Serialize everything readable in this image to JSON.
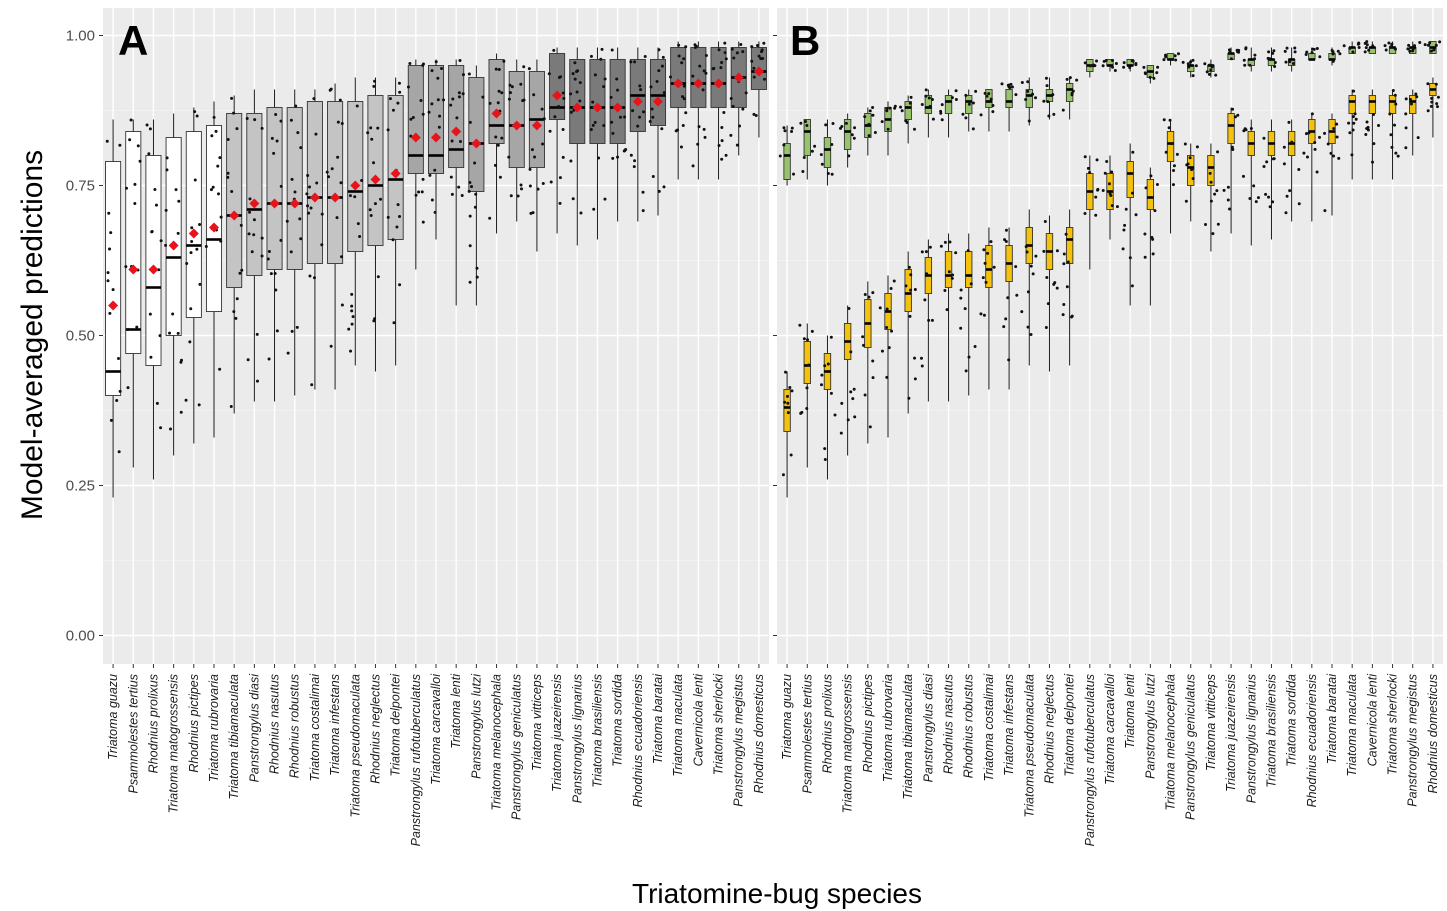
{
  "chart_data": {
    "type": "box",
    "xlabel": "Triatomine-bug species",
    "ylabel": "Model-averaged predictions",
    "ylim": [
      -0.04,
      1.05
    ],
    "yticks": [
      "0.00",
      "0.25",
      "0.50",
      "0.75",
      "1.00"
    ],
    "grid": true,
    "panels": [
      "A",
      "B"
    ],
    "categories": [
      "Triatoma guazu",
      "Psammolestes tertius",
      "Rhodnius prolixus",
      "Triatoma matogrossensis",
      "Rhodnius pictipes",
      "Triatoma rubrovaria",
      "Triatoma tibiamaculata",
      "Panstrongylus diasi",
      "Rhodnius nasutus",
      "Rhodnius robustus",
      "Triatoma costalimai",
      "Triatoma infestans",
      "Triatoma pseudomaculata",
      "Rhodnius neglectus",
      "Triatoma delpontei",
      "Panstrongylus rufotuberculatus",
      "Triatoma carcavalloi",
      "Triatoma lenti",
      "Panstrongylus lutzi",
      "Triatoma melanocephala",
      "Panstrongylus geniculatus",
      "Triatoma vitticeps",
      "Triatoma juazeirensis",
      "Panstrongylus lignarius",
      "Triatoma brasiliensis",
      "Triatoma sordida",
      "Rhodnius ecuadoriensis",
      "Triatoma baratai",
      "Triatoma maculata",
      "Cavernicola lenti",
      "Triatoma sherlocki",
      "Panstrongylus megistus",
      "Rhodnius domesticus"
    ],
    "panel_A": {
      "box_colors": [
        "#ffffff",
        "#ffffff",
        "#ffffff",
        "#ffffff",
        "#ffffff",
        "#ffffff",
        "#c4c4c4",
        "#c4c4c4",
        "#c4c4c4",
        "#c4c4c4",
        "#c4c4c4",
        "#c4c4c4",
        "#c4c4c4",
        "#c4c4c4",
        "#c4c4c4",
        "#a6a6a6",
        "#a6a6a6",
        "#a6a6a6",
        "#a6a6a6",
        "#a6a6a6",
        "#a6a6a6",
        "#a6a6a6",
        "#7a7a7a",
        "#7a7a7a",
        "#7a7a7a",
        "#7a7a7a",
        "#7a7a7a",
        "#7a7a7a",
        "#7a7a7a",
        "#7a7a7a",
        "#7a7a7a",
        "#7a7a7a",
        "#7a7a7a"
      ],
      "mean_color": "#e8141a",
      "min": [
        0.23,
        0.28,
        0.26,
        0.3,
        0.32,
        0.33,
        0.37,
        0.39,
        0.39,
        0.4,
        0.41,
        0.41,
        0.45,
        0.44,
        0.45,
        0.61,
        0.66,
        0.55,
        0.55,
        0.67,
        0.69,
        0.64,
        0.67,
        0.65,
        0.66,
        0.69,
        0.69,
        0.7,
        0.76,
        0.76,
        0.76,
        0.8,
        0.83
      ],
      "q1": [
        0.4,
        0.47,
        0.45,
        0.5,
        0.53,
        0.54,
        0.58,
        0.6,
        0.61,
        0.61,
        0.62,
        0.62,
        0.64,
        0.65,
        0.66,
        0.77,
        0.77,
        0.78,
        0.74,
        0.82,
        0.78,
        0.78,
        0.86,
        0.82,
        0.82,
        0.82,
        0.84,
        0.85,
        0.88,
        0.88,
        0.88,
        0.88,
        0.91
      ],
      "median": [
        0.44,
        0.51,
        0.58,
        0.63,
        0.65,
        0.66,
        0.7,
        0.71,
        0.72,
        0.72,
        0.73,
        0.73,
        0.74,
        0.75,
        0.76,
        0.8,
        0.8,
        0.81,
        0.82,
        0.85,
        0.85,
        0.86,
        0.88,
        0.88,
        0.88,
        0.88,
        0.9,
        0.9,
        0.92,
        0.92,
        0.92,
        0.93,
        0.94
      ],
      "q3": [
        0.79,
        0.84,
        0.8,
        0.83,
        0.84,
        0.85,
        0.87,
        0.87,
        0.88,
        0.88,
        0.89,
        0.89,
        0.89,
        0.9,
        0.9,
        0.95,
        0.95,
        0.95,
        0.93,
        0.96,
        0.94,
        0.94,
        0.97,
        0.96,
        0.96,
        0.96,
        0.96,
        0.96,
        0.98,
        0.98,
        0.98,
        0.98,
        0.98
      ],
      "max": [
        0.86,
        0.86,
        0.86,
        0.87,
        0.88,
        0.89,
        0.9,
        0.91,
        0.91,
        0.91,
        0.91,
        0.92,
        0.93,
        0.93,
        0.93,
        0.96,
        0.96,
        0.96,
        0.95,
        0.97,
        0.96,
        0.96,
        0.98,
        0.98,
        0.98,
        0.98,
        0.98,
        0.98,
        0.99,
        0.99,
        0.99,
        0.99,
        0.99
      ],
      "mean": [
        0.55,
        0.61,
        0.61,
        0.65,
        0.67,
        0.68,
        0.7,
        0.72,
        0.72,
        0.72,
        0.73,
        0.73,
        0.75,
        0.76,
        0.77,
        0.83,
        0.83,
        0.84,
        0.82,
        0.87,
        0.85,
        0.85,
        0.9,
        0.88,
        0.88,
        0.88,
        0.89,
        0.89,
        0.92,
        0.92,
        0.92,
        0.93,
        0.94
      ]
    },
    "panel_B": {
      "series": [
        {
          "color": "#97c46b",
          "min": [
            0.75,
            0.76,
            0.75,
            0.78,
            0.8,
            0.8,
            0.82,
            0.83,
            0.83,
            0.84,
            0.84,
            0.84,
            0.85,
            0.86,
            0.86,
            0.93,
            0.94,
            0.94,
            0.92,
            0.95,
            0.93,
            0.93,
            0.96,
            0.94,
            0.94,
            0.94,
            0.96,
            0.95,
            0.97,
            0.97,
            0.97,
            0.97,
            0.97
          ],
          "q1": [
            0.76,
            0.8,
            0.78,
            0.81,
            0.83,
            0.84,
            0.86,
            0.87,
            0.87,
            0.87,
            0.88,
            0.88,
            0.88,
            0.89,
            0.89,
            0.94,
            0.95,
            0.95,
            0.93,
            0.96,
            0.94,
            0.94,
            0.96,
            0.95,
            0.95,
            0.95,
            0.96,
            0.96,
            0.97,
            0.97,
            0.97,
            0.97,
            0.97
          ],
          "median": [
            0.8,
            0.84,
            0.81,
            0.84,
            0.85,
            0.86,
            0.88,
            0.88,
            0.89,
            0.89,
            0.89,
            0.89,
            0.9,
            0.9,
            0.91,
            0.95,
            0.95,
            0.95,
            0.94,
            0.96,
            0.95,
            0.95,
            0.97,
            0.96,
            0.96,
            0.96,
            0.96,
            0.96,
            0.98,
            0.98,
            0.98,
            0.98,
            0.98
          ],
          "q3": [
            0.82,
            0.86,
            0.83,
            0.86,
            0.87,
            0.88,
            0.89,
            0.9,
            0.9,
            0.9,
            0.91,
            0.91,
            0.91,
            0.91,
            0.92,
            0.96,
            0.96,
            0.96,
            0.95,
            0.97,
            0.95,
            0.95,
            0.97,
            0.96,
            0.96,
            0.96,
            0.97,
            0.97,
            0.98,
            0.98,
            0.98,
            0.98,
            0.99
          ],
          "max": [
            0.85,
            0.86,
            0.86,
            0.87,
            0.88,
            0.89,
            0.9,
            0.91,
            0.91,
            0.91,
            0.91,
            0.92,
            0.93,
            0.93,
            0.93,
            0.96,
            0.96,
            0.96,
            0.95,
            0.97,
            0.96,
            0.96,
            0.98,
            0.98,
            0.98,
            0.98,
            0.98,
            0.98,
            0.99,
            0.99,
            0.99,
            0.99,
            0.99
          ]
        },
        {
          "color": "#f4c20d",
          "min": [
            0.23,
            0.28,
            0.26,
            0.3,
            0.32,
            0.33,
            0.37,
            0.39,
            0.39,
            0.4,
            0.41,
            0.41,
            0.45,
            0.44,
            0.45,
            0.61,
            0.66,
            0.55,
            0.55,
            0.67,
            0.69,
            0.64,
            0.67,
            0.65,
            0.66,
            0.69,
            0.69,
            0.7,
            0.76,
            0.76,
            0.76,
            0.8,
            0.83
          ],
          "q1": [
            0.34,
            0.42,
            0.41,
            0.46,
            0.48,
            0.51,
            0.54,
            0.57,
            0.58,
            0.58,
            0.58,
            0.59,
            0.62,
            0.61,
            0.62,
            0.71,
            0.71,
            0.73,
            0.71,
            0.79,
            0.75,
            0.75,
            0.82,
            0.8,
            0.8,
            0.8,
            0.82,
            0.82,
            0.87,
            0.87,
            0.87,
            0.87,
            0.9
          ],
          "median": [
            0.38,
            0.45,
            0.44,
            0.49,
            0.52,
            0.54,
            0.57,
            0.6,
            0.6,
            0.6,
            0.61,
            0.62,
            0.65,
            0.64,
            0.66,
            0.74,
            0.74,
            0.77,
            0.73,
            0.82,
            0.78,
            0.78,
            0.85,
            0.82,
            0.82,
            0.82,
            0.84,
            0.84,
            0.89,
            0.89,
            0.89,
            0.89,
            0.91
          ],
          "q3": [
            0.41,
            0.49,
            0.47,
            0.52,
            0.56,
            0.57,
            0.61,
            0.63,
            0.64,
            0.64,
            0.65,
            0.65,
            0.68,
            0.67,
            0.68,
            0.77,
            0.77,
            0.79,
            0.76,
            0.84,
            0.8,
            0.8,
            0.87,
            0.84,
            0.84,
            0.84,
            0.86,
            0.86,
            0.9,
            0.9,
            0.9,
            0.9,
            0.92
          ],
          "max": [
            0.44,
            0.52,
            0.5,
            0.55,
            0.59,
            0.6,
            0.64,
            0.66,
            0.67,
            0.67,
            0.68,
            0.68,
            0.71,
            0.7,
            0.71,
            0.8,
            0.8,
            0.82,
            0.78,
            0.86,
            0.82,
            0.82,
            0.88,
            0.86,
            0.86,
            0.86,
            0.87,
            0.87,
            0.91,
            0.91,
            0.91,
            0.91,
            0.93
          ]
        }
      ]
    }
  }
}
